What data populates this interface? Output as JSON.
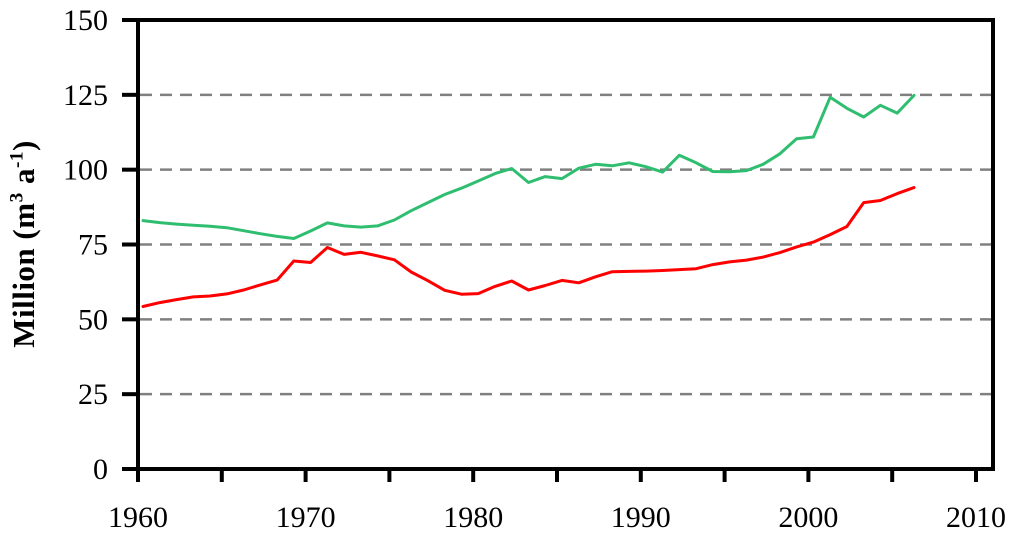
{
  "figure": {
    "background": "#ffffff",
    "y_axis": {
      "label_parts": {
        "prefix": "Million (m",
        "sup1": "3",
        "mid": " a",
        "sup2": "-1",
        "suffix": ")"
      },
      "tick_labels": [
        "0",
        "25",
        "50",
        "75",
        "100",
        "125",
        "150"
      ],
      "tick_values": [
        0,
        25,
        50,
        75,
        100,
        125,
        150
      ]
    },
    "x_axis": {
      "tick_labels": [
        "1960",
        "1970",
        "1980",
        "1990",
        "2000",
        "2010"
      ],
      "labeled_tick_values": [
        1960,
        1970,
        1980,
        1990,
        2000,
        2010
      ],
      "minor_tick_values": [
        1965,
        1975,
        1985,
        1995,
        2005
      ]
    },
    "colors": {
      "axis_frame": "#000000",
      "gridline": "#808080",
      "green_series": "#2fbe70",
      "red_series": "#ff0000"
    }
  },
  "chart_data": {
    "type": "line",
    "title": "",
    "xlabel": "",
    "ylabel": "Million (m3 a-1)",
    "ylim": [
      0,
      150
    ],
    "xlim": [
      1960,
      2011
    ],
    "grid": "horizontal dashed lines at 25, 50, 75, 100, 125",
    "legend_position": "none",
    "x": [
      1960,
      1961,
      1962,
      1963,
      1964,
      1965,
      1966,
      1967,
      1968,
      1969,
      1970,
      1971,
      1972,
      1973,
      1974,
      1975,
      1976,
      1977,
      1978,
      1979,
      1980,
      1981,
      1982,
      1983,
      1984,
      1985,
      1986,
      1987,
      1988,
      1989,
      1990,
      1991,
      1992,
      1993,
      1994,
      1995,
      1996,
      1997,
      1998,
      1999,
      2000,
      2001,
      2002,
      2003,
      2004,
      2005,
      2006
    ],
    "series": [
      {
        "name": "green-series",
        "color": "#2fbe70",
        "values": [
          83.0,
          82.3,
          81.8,
          81.4,
          81.1,
          80.6,
          79.6,
          78.6,
          77.7,
          77.0,
          79.5,
          82.2,
          81.2,
          80.8,
          81.2,
          83.2,
          86.3,
          89.0,
          91.7,
          93.8,
          96.2,
          98.7,
          100.4,
          95.7,
          97.7,
          97.0,
          100.5,
          101.8,
          101.3,
          102.3,
          101.0,
          99.2,
          104.8,
          102.3,
          99.4,
          99.3,
          99.7,
          101.8,
          105.3,
          110.3,
          110.9,
          124.2,
          120.5,
          117.6,
          121.5,
          118.9,
          124.8
        ]
      },
      {
        "name": "red-series",
        "color": "#ff0000",
        "values": [
          54.3,
          55.6,
          56.6,
          57.5,
          57.8,
          58.5,
          59.8,
          61.5,
          63.1,
          69.5,
          69.0,
          74.0,
          71.7,
          72.4,
          71.2,
          69.9,
          65.8,
          62.9,
          59.7,
          58.4,
          58.6,
          61.0,
          62.8,
          59.8,
          61.3,
          63.0,
          62.2,
          64.2,
          65.9,
          66.0,
          66.1,
          66.3,
          66.6,
          66.9,
          68.3,
          69.2,
          69.8,
          70.8,
          72.3,
          74.2,
          75.8,
          78.3,
          81.0,
          89.0,
          89.7,
          92.0,
          94.0
        ]
      }
    ]
  }
}
